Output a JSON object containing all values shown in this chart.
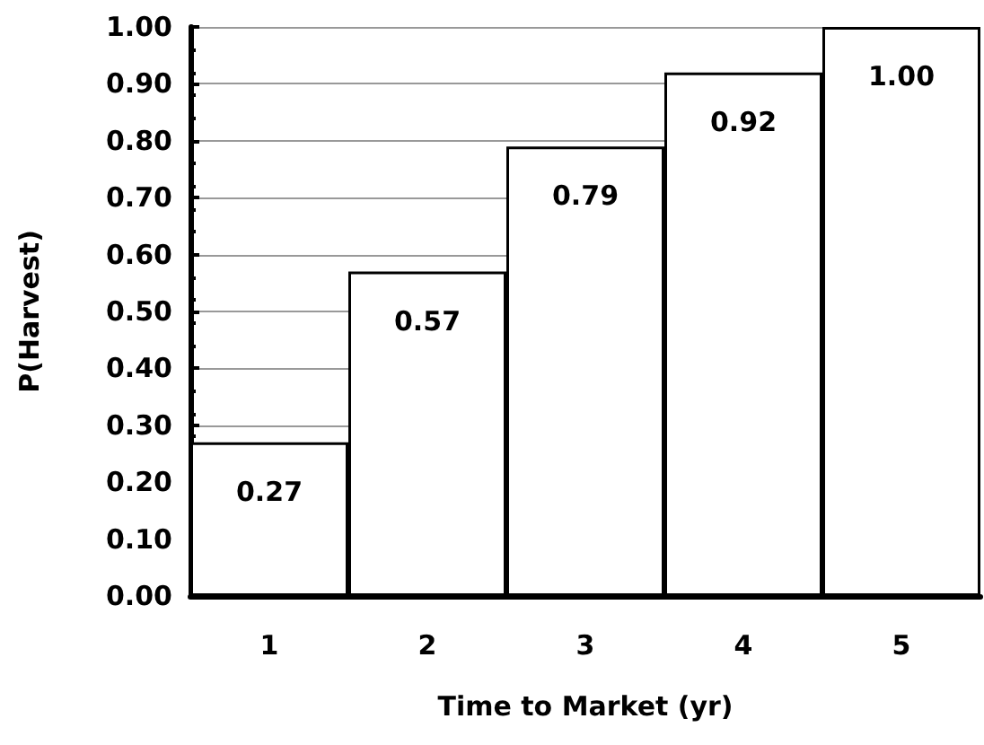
{
  "chart_data": {
    "type": "bar",
    "xlabel": "Time to Market (yr)",
    "ylabel": "P(Harvest)",
    "categories": [
      "1",
      "2",
      "3",
      "4",
      "5"
    ],
    "values": [
      0.27,
      0.57,
      0.79,
      0.92,
      1.0
    ],
    "value_labels": [
      "0.27",
      "0.57",
      "0.79",
      "0.92",
      "1.00"
    ],
    "color": "#ffffff",
    "ylim": [
      0,
      1
    ],
    "yticks": [
      {
        "value": 0,
        "label": "0.00"
      },
      {
        "value": 0.1,
        "label": "0.10"
      },
      {
        "value": 0.2,
        "label": "0.20"
      },
      {
        "value": 0.3,
        "label": "0.30"
      },
      {
        "value": 0.4,
        "label": "0.40"
      },
      {
        "value": 0.5,
        "label": "0.50"
      },
      {
        "value": 0.6,
        "label": "0.60"
      },
      {
        "value": 0.7,
        "label": "0.70"
      },
      {
        "value": 0.8,
        "label": "0.80"
      },
      {
        "value": 0.9,
        "label": "0.90"
      },
      {
        "value": 1,
        "label": "1.00"
      }
    ],
    "grid": "y"
  }
}
